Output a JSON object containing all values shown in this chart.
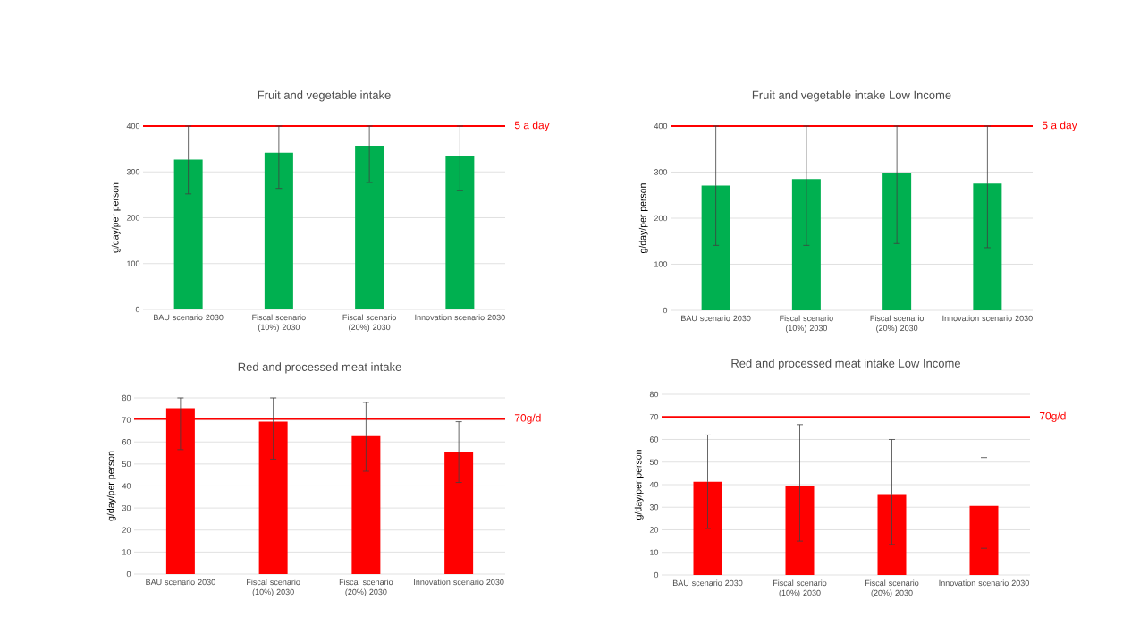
{
  "chart_data": [
    {
      "type": "bar",
      "title": "Fruit and vegetable intake",
      "ylabel": "g/day/per person",
      "categories": [
        "BAU scenario 2030",
        "Fiscal scenario (10%) 2030",
        "Fiscal scenario (20%) 2030",
        "Innovation scenario 2030"
      ],
      "values": [
        327,
        342,
        357,
        334
      ],
      "color": "#00b050",
      "errors": [
        [
          252,
          400
        ],
        [
          264,
          400
        ],
        [
          277,
          400
        ],
        [
          259,
          400
        ]
      ],
      "ylim": [
        0,
        400
      ],
      "yticks": [
        0,
        100,
        200,
        300,
        400
      ],
      "grid": "y",
      "ref_lines": [
        {
          "axis": "y",
          "value": 400,
          "label": "5 a day",
          "color": "#ff0000"
        }
      ]
    },
    {
      "type": "bar",
      "title": "Fruit and vegetable intake Low Income",
      "ylabel": "g/day/per person",
      "categories": [
        "BAU scenario 2030",
        "Fiscal scenario (10%) 2030",
        "Fiscal scenario (20%) 2030",
        "Innovation scenario 2030"
      ],
      "values": [
        271,
        285,
        299,
        275
      ],
      "color": "#00b050",
      "errors": [
        [
          141,
          400
        ],
        [
          141,
          400
        ],
        [
          145,
          400
        ],
        [
          136,
          400
        ]
      ],
      "ylim": [
        0,
        400
      ],
      "yticks": [
        0,
        100,
        200,
        300,
        400
      ],
      "grid": "y",
      "ref_lines": [
        {
          "axis": "y",
          "value": 400,
          "label": "5 a day",
          "color": "#ff0000"
        }
      ]
    },
    {
      "type": "bar",
      "title": "Red and processed meat intake",
      "ylabel": "g/day/per person",
      "categories": [
        "BAU scenario 2030",
        "Fiscal scenario (10%) 2030",
        "Fiscal scenario (20%) 2030",
        "Innovation scenario 2030"
      ],
      "values": [
        75.3,
        69.2,
        62.6,
        55.4
      ],
      "color": "#ff0000",
      "errors": [
        [
          56.5,
          80
        ],
        [
          52.2,
          80
        ],
        [
          46.7,
          78
        ],
        [
          41.6,
          69.2
        ]
      ],
      "ylim": [
        0,
        80
      ],
      "yticks": [
        0,
        10,
        20,
        30,
        40,
        50,
        60,
        70,
        80
      ],
      "grid": "y",
      "ref_lines": [
        {
          "axis": "y",
          "value": 70.5,
          "label": "70g/d",
          "color": "#ff0000"
        }
      ]
    },
    {
      "type": "bar",
      "title": "Red and processed meat intake Low Income",
      "ylabel": "g/day/per person",
      "categories": [
        "BAU scenario 2030",
        "Fiscal scenario (10%) 2030",
        "Fiscal scenario (20%) 2030",
        "Innovation scenario 2030"
      ],
      "values": [
        41.3,
        39.4,
        35.8,
        30.6
      ],
      "color": "#ff0000",
      "errors": [
        [
          20.6,
          62
        ],
        [
          15,
          66.6
        ],
        [
          13.5,
          60
        ],
        [
          11.8,
          52
        ]
      ],
      "ylim": [
        0,
        80
      ],
      "yticks": [
        0,
        10,
        20,
        30,
        40,
        50,
        60,
        70,
        80
      ],
      "grid": "y",
      "ref_lines": [
        {
          "axis": "y",
          "value": 70,
          "label": "70g/d",
          "color": "#ff0000"
        }
      ]
    }
  ]
}
